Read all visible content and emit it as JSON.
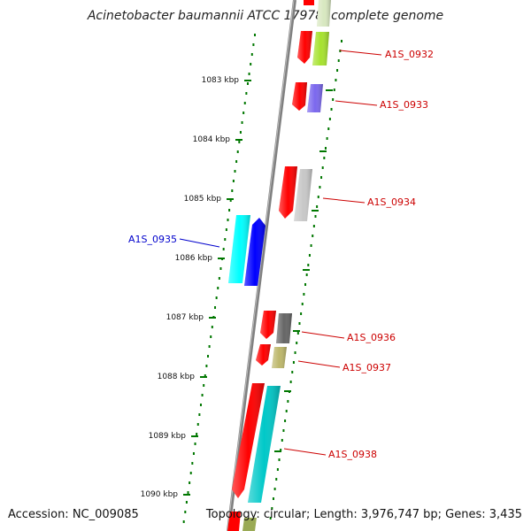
{
  "title": "Acinetobacter baumannii ATCC 17978, complete genome",
  "accession": "Accession: NC_009085",
  "topology": "Topology: circular; Length: 3,976,747 bp; Genes: 3,435",
  "kbp_labels": [
    "1083 kbp",
    "1084 kbp",
    "1085 kbp",
    "1086 kbp",
    "1087 kbp",
    "1088 kbp",
    "1089 kbp",
    "1090 kbp"
  ],
  "genes": [
    {
      "id": "A1S_0932",
      "strand": "reverse",
      "color": "#a6e22e",
      "label_color": "#cc0000"
    },
    {
      "id": "A1S_0933",
      "strand": "reverse",
      "color": "#7b68ee",
      "label_color": "#cc0000"
    },
    {
      "id": "A1S_0934",
      "strand": "reverse",
      "color": "#c8c8c8",
      "label_color": "#cc0000"
    },
    {
      "id": "A1S_0935",
      "strand": "forward",
      "color": "#0000ff",
      "label_color": "#0000cc"
    },
    {
      "id": "A1S_0936",
      "strand": "reverse",
      "color": "#666666",
      "label_color": "#cc0000"
    },
    {
      "id": "A1S_0937",
      "strand": "reverse",
      "color": "#bdb76b",
      "label_color": "#cc0000"
    },
    {
      "id": "A1S_0938",
      "strand": "reverse",
      "color": "#00c8c8",
      "label_color": "#cc0000"
    }
  ],
  "colors": {
    "backbone": "#808080",
    "ticks": "#007700",
    "cds": "#ff0000",
    "orf": "#00ffff"
  }
}
